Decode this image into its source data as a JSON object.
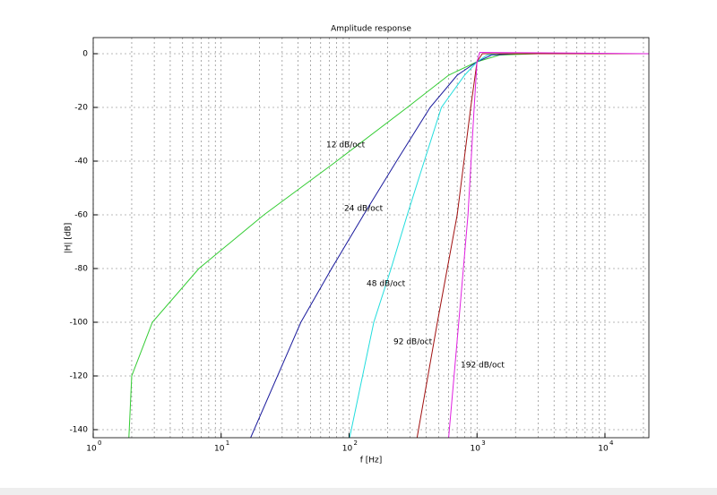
{
  "chart_data": {
    "type": "line",
    "title": "Amplitude response",
    "x_label": "f [Hz]",
    "y_label": "|H| [dB]",
    "x_scale": "log",
    "grid": true,
    "xlim": [
      1,
      22050
    ],
    "ylim": [
      -143,
      6
    ],
    "xticks": [
      {
        "value": 1,
        "label": "10",
        "power": "0"
      },
      {
        "value": 10,
        "label": "10",
        "power": "1"
      },
      {
        "value": 100,
        "label": "10",
        "power": "2"
      },
      {
        "value": 1000,
        "label": "10",
        "power": "3"
      },
      {
        "value": 10000,
        "label": "10",
        "power": "4"
      }
    ],
    "xminorticks": [
      2,
      3,
      4,
      5,
      6,
      7,
      8,
      9,
      20,
      30,
      40,
      50,
      60,
      70,
      80,
      90,
      200,
      300,
      400,
      500,
      600,
      700,
      800,
      900,
      2000,
      3000,
      4000,
      5000,
      6000,
      7000,
      8000,
      9000,
      20000
    ],
    "yticks": [
      0,
      -20,
      -40,
      -60,
      -80,
      -100,
      -120,
      -140
    ],
    "series": [
      {
        "color": "#33cc33",
        "x": [
          1.9,
          2,
          2.9,
          6.7,
          21.6,
          80,
          285,
          600,
          1000,
          1500,
          3000,
          22050
        ],
        "values": [
          -143,
          -120,
          -100,
          -80,
          -60,
          -40,
          -20,
          -8,
          -3,
          -0.5,
          0,
          0
        ]
      },
      {
        "color": "#1a1a9c",
        "x": [
          17,
          42,
          73,
          130,
          235,
          430,
          700,
          1000,
          1300,
          2000,
          22050
        ],
        "values": [
          -143,
          -100,
          -80,
          -60,
          -40,
          -20,
          -8,
          -3,
          -0.5,
          0,
          0
        ]
      },
      {
        "color": "#22dddd",
        "x": [
          101,
          156,
          213,
          285,
          387,
          527,
          800,
          1000,
          1200,
          1500,
          22050
        ],
        "values": [
          -143,
          -100,
          -80,
          -60,
          -40,
          -20,
          -8,
          -3,
          -0.5,
          0,
          0
        ]
      },
      {
        "color": "#a01010",
        "x": [
          340,
          490,
          700,
          893,
          1000,
          1100,
          22050
        ],
        "values": [
          -143,
          -100,
          -60,
          -20,
          -3,
          0,
          0
        ]
      },
      {
        "color": "#e020e0",
        "x": [
          600,
          720,
          850,
          950,
          1000,
          1050,
          22050
        ],
        "values": [
          -143,
          -100,
          -60,
          -20,
          -3,
          0.5,
          0
        ]
      }
    ],
    "annotations": [
      "12 dB/oct",
      "24 dB/oct",
      "48 dB/oct",
      "92 dB/oct",
      "192 dB/oct"
    ]
  }
}
